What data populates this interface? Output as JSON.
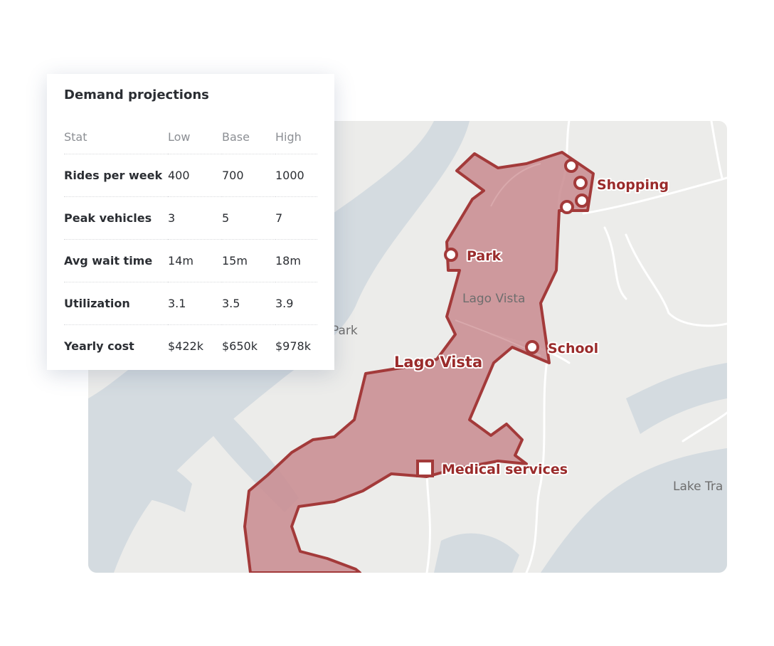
{
  "panel": {
    "title": "Demand projections",
    "columns": [
      "Stat",
      "Low",
      "Base",
      "High"
    ],
    "rows": [
      {
        "stat": "Rides per week",
        "low": "400",
        "base": "700",
        "high": "1000"
      },
      {
        "stat": "Peak vehicles",
        "low": "3",
        "base": "5",
        "high": "7"
      },
      {
        "stat": "Avg wait time",
        "low": "14m",
        "base": "15m",
        "high": "18m"
      },
      {
        "stat": "Utilization",
        "low": "3.1",
        "base": "3.5",
        "high": "3.9"
      },
      {
        "stat": "Yearly cost",
        "low": "$422k",
        "base": "$650k",
        "high": "$978k"
      }
    ]
  },
  "map": {
    "service_area_label": "Lago Vista",
    "place_labels": {
      "town": "Lago Vista",
      "park": "Park",
      "lake": "Lake Tra"
    },
    "poi": [
      {
        "label": "Shopping",
        "kind": "circle"
      },
      {
        "label": "Park",
        "kind": "circle"
      },
      {
        "label": "School",
        "kind": "circle"
      },
      {
        "label": "Medical services",
        "kind": "square"
      }
    ],
    "colors": {
      "zone_fill": "#c98b8f",
      "zone_stroke": "#a33a3a",
      "water": "#d4dbe0",
      "land": "#ececea",
      "label": "#9a2b2b"
    }
  }
}
